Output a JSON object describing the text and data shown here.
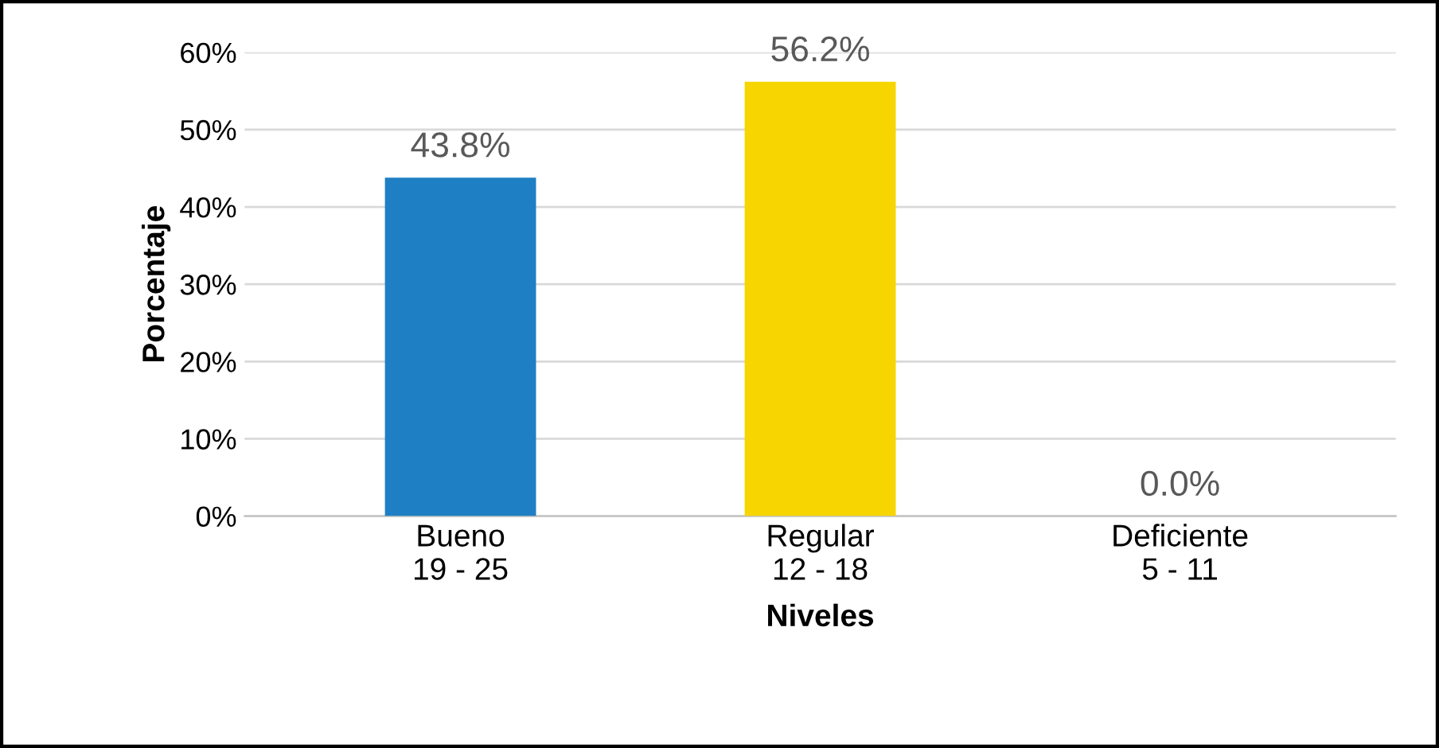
{
  "chart_data": {
    "type": "bar",
    "xlabel": "Niveles",
    "ylabel": "Porcentaje",
    "categories": [
      "Bueno\n19 - 25",
      "Regular\n12 - 18",
      "Deficiente\n5 - 11"
    ],
    "values": [
      43.8,
      56.2,
      0.0
    ],
    "colors": [
      "#1f7fc4",
      "#f7d500",
      "#3a7ca8"
    ],
    "value_labels": [
      "43.8%",
      "56.2%",
      "0.0%"
    ],
    "ylim": [
      0,
      60
    ],
    "yticks": [
      {
        "value": 0,
        "label": "0%"
      },
      {
        "value": 10,
        "label": "10%"
      },
      {
        "value": 20,
        "label": "20%"
      },
      {
        "value": 30,
        "label": "30%"
      },
      {
        "value": 40,
        "label": "40%"
      },
      {
        "value": 50,
        "label": "50%"
      },
      {
        "value": 60,
        "label": "60%"
      }
    ],
    "grid": "y",
    "legend": false
  }
}
